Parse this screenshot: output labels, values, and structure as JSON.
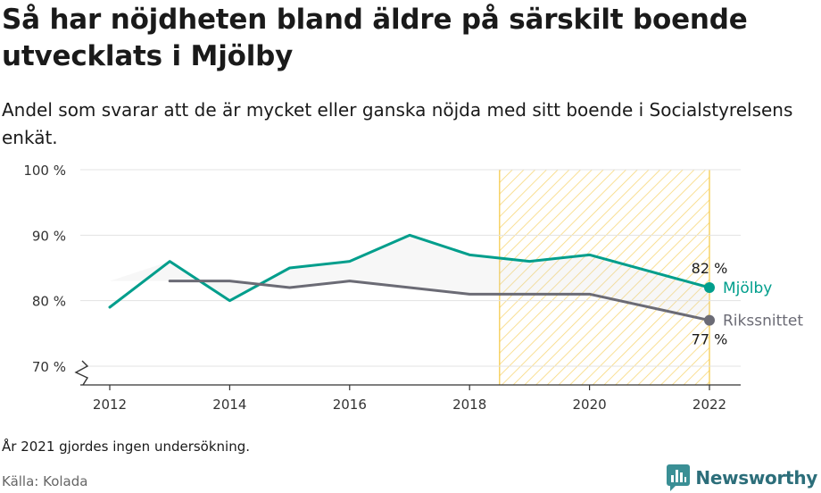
{
  "header": {
    "title": "Så har nöjdheten bland äldre på särskilt boende utvecklats i Mjölby",
    "subtitle": "Andel som svarar att de är mycket eller ganska nöjda med sitt boende i Socialstyrelsens enkät."
  },
  "footer": {
    "note": "År 2021 gjordes ingen undersökning.",
    "source": "Källa: Kolada",
    "brand": "Newsworthy"
  },
  "colors": {
    "mjolby": "#009e8c",
    "riket": "#6b6b75",
    "highlight": "#f5c842",
    "grid": "#e3e3e3",
    "axis": "#333333"
  },
  "chart_data": {
    "type": "line",
    "x": [
      2012,
      2013,
      2014,
      2015,
      2016,
      2017,
      2018,
      2019,
      2020,
      2022
    ],
    "x_ticks": [
      2012,
      2014,
      2016,
      2018,
      2020,
      2022
    ],
    "y_ticks": [
      70,
      80,
      90,
      100
    ],
    "y_tick_labels": [
      "70 %",
      "80 %",
      "90 %",
      "100 %"
    ],
    "xlim": [
      2011.5,
      2022.5
    ],
    "ylim": [
      67,
      100
    ],
    "y_axis_break": true,
    "grid": "horizontal",
    "highlight_range": [
      2018.5,
      2022
    ],
    "series": [
      {
        "name": "Mjölby",
        "color_key": "mjolby",
        "points": [
          [
            2012,
            79
          ],
          [
            2013,
            86
          ],
          [
            2014,
            80
          ],
          [
            2015,
            85
          ],
          [
            2016,
            86
          ],
          [
            2017,
            90
          ],
          [
            2018,
            87
          ],
          [
            2019,
            86
          ],
          [
            2020,
            87
          ],
          [
            2022,
            82
          ]
        ],
        "end_label": "82 %"
      },
      {
        "name": "Rikssnittet",
        "color_key": "riket",
        "points": [
          [
            2013,
            83
          ],
          [
            2014,
            83
          ],
          [
            2015,
            82
          ],
          [
            2016,
            83
          ],
          [
            2017,
            82
          ],
          [
            2018,
            81
          ],
          [
            2019,
            81
          ],
          [
            2020,
            81
          ],
          [
            2022,
            77
          ]
        ],
        "end_label": "77 %"
      }
    ]
  }
}
